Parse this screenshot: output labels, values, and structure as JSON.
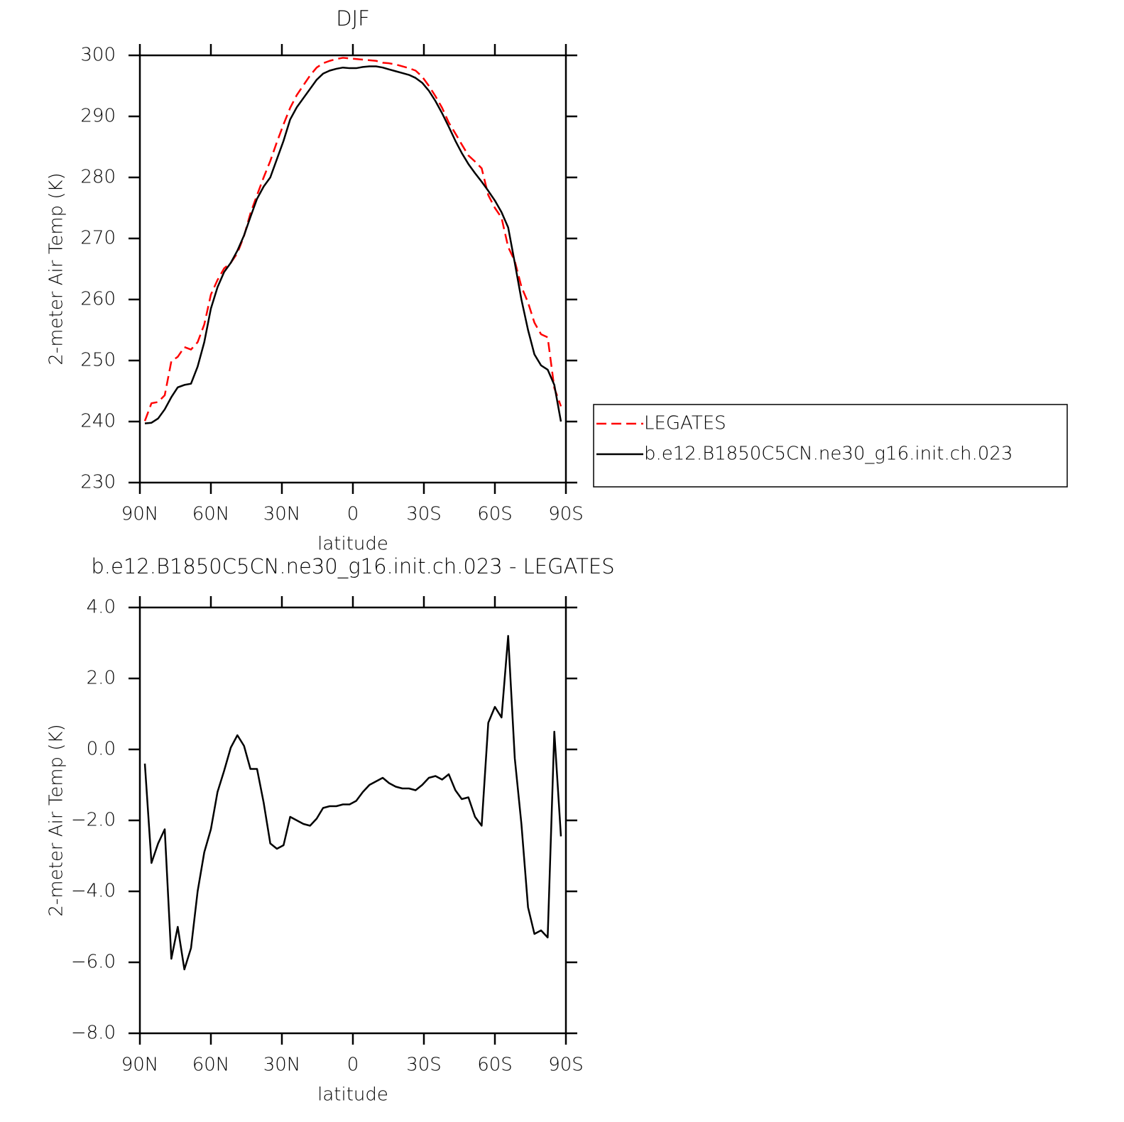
{
  "chart_data": [
    {
      "type": "line",
      "title": "DJF",
      "x_label": "latitude",
      "y_label": "2-meter Air Temp (K)",
      "x": [
        87.9,
        85.1,
        82.3,
        79.5,
        76.7,
        74.0,
        71.2,
        68.4,
        65.6,
        62.8,
        60.0,
        57.2,
        54.4,
        51.6,
        48.8,
        46.0,
        43.3,
        40.5,
        37.7,
        34.9,
        32.1,
        29.3,
        26.5,
        23.7,
        20.9,
        18.1,
        15.3,
        12.6,
        9.8,
        7.0,
        4.2,
        1.4,
        -1.4,
        -4.2,
        -7.0,
        -9.8,
        -12.6,
        -15.3,
        -18.1,
        -20.9,
        -23.7,
        -26.5,
        -29.3,
        -32.1,
        -34.9,
        -37.7,
        -40.5,
        -43.3,
        -46.0,
        -48.8,
        -51.6,
        -54.4,
        -57.2,
        -60.0,
        -62.8,
        -65.6,
        -68.4,
        -71.2,
        -74.0,
        -76.7,
        -79.5,
        -82.3,
        -85.1,
        -87.9
      ],
      "series": [
        {
          "name": "LEGATES",
          "color": "#ff0000",
          "line_style": "dashed",
          "values": [
            240.1,
            243.0,
            243.2,
            244.3,
            249.9,
            250.6,
            252.2,
            251.8,
            253.0,
            255.9,
            260.8,
            263.2,
            265.1,
            266.0,
            267.6,
            270.4,
            274.1,
            277.1,
            280.0,
            282.7,
            285.8,
            288.7,
            291.4,
            293.5,
            295.1,
            296.7,
            298.0,
            298.7,
            299.1,
            299.4,
            299.6,
            299.5,
            299.4,
            299.3,
            299.2,
            299.1,
            298.8,
            298.7,
            298.5,
            298.2,
            297.9,
            297.5,
            296.5,
            295.0,
            293.3,
            291.4,
            289.0,
            287.2,
            285.4,
            283.6,
            282.6,
            281.5,
            277.1,
            275.0,
            273.4,
            268.6,
            266.3,
            262.1,
            259.5,
            256.2,
            254.3,
            253.8,
            245.5,
            242.5
          ]
        },
        {
          "name": "b.e12.B1850C5CN.ne30_g16.init.ch.023",
          "color": "#000000",
          "line_style": "solid",
          "values": [
            239.7,
            239.8,
            240.5,
            242,
            244,
            245.6,
            246,
            246.2,
            249,
            253,
            258.5,
            262,
            264.5,
            266,
            268,
            270.5,
            273.5,
            276.5,
            278.5,
            280,
            283,
            286,
            289.5,
            291.5,
            293,
            294.5,
            296,
            297,
            297.5,
            297.8,
            298,
            297.9,
            297.9,
            298.1,
            298.2,
            298.2,
            298,
            297.7,
            297.4,
            297.1,
            296.8,
            296.3,
            295.5,
            294.2,
            292.5,
            290.5,
            288.3,
            286,
            284,
            282.2,
            280.7,
            279.3,
            277.8,
            276.2,
            274.3,
            271.8,
            266,
            260,
            255,
            251,
            249.2,
            248.5,
            246,
            240
          ]
        }
      ],
      "xlim": [
        90,
        -90
      ],
      "xticks": [
        {
          "value": 90,
          "label": "90N"
        },
        {
          "value": 60,
          "label": "60N"
        },
        {
          "value": 30,
          "label": "30N"
        },
        0,
        {
          "value": -30,
          "label": "30S"
        },
        {
          "value": -60,
          "label": "60S"
        },
        {
          "value": -90,
          "label": "90S"
        }
      ],
      "ylim": [
        230,
        300
      ],
      "yticks": [
        230,
        240,
        250,
        260,
        270,
        280,
        290,
        300
      ],
      "legend": "right"
    },
    {
      "type": "line",
      "title": "b.e12.B1850C5CN.ne30_g16.init.ch.023 - LEGATES",
      "x_label": "latitude",
      "y_label": "2-meter Air Temp (K)",
      "x": [
        87.9,
        85.1,
        82.3,
        79.5,
        76.7,
        74.0,
        71.2,
        68.4,
        65.6,
        62.8,
        60.0,
        57.2,
        54.4,
        51.6,
        48.8,
        46.0,
        43.3,
        40.5,
        37.7,
        34.9,
        32.1,
        29.3,
        26.5,
        23.7,
        20.9,
        18.1,
        15.3,
        12.6,
        9.8,
        7.0,
        4.2,
        1.4,
        -1.4,
        -4.2,
        -7.0,
        -9.8,
        -12.6,
        -15.3,
        -18.1,
        -20.9,
        -23.7,
        -26.5,
        -29.3,
        -32.1,
        -34.9,
        -37.7,
        -40.5,
        -43.3,
        -46.0,
        -48.8,
        -51.6,
        -54.4,
        -57.2,
        -60.0,
        -62.8,
        -65.6,
        -68.4,
        -71.2,
        -74.0,
        -76.7,
        -79.5,
        -82.3,
        -85.1,
        -87.9
      ],
      "series": [
        {
          "color": "#000000",
          "line_style": "solid",
          "values": [
            -0.4,
            -3.2,
            -2.65,
            -2.25,
            -5.9,
            -5.0,
            -6.2,
            -5.6,
            -4.0,
            -2.9,
            -2.25,
            -1.2,
            -0.6,
            0.05,
            0.4,
            0.1,
            -0.55,
            -0.55,
            -1.5,
            -2.65,
            -2.8,
            -2.7,
            -1.9,
            -2.0,
            -2.1,
            -2.15,
            -1.95,
            -1.65,
            -1.6,
            -1.6,
            -1.55,
            -1.55,
            -1.45,
            -1.2,
            -1.0,
            -0.9,
            -0.8,
            -0.95,
            -1.05,
            -1.1,
            -1.1,
            -1.15,
            -1.0,
            -0.8,
            -0.75,
            -0.85,
            -0.7,
            -1.15,
            -1.4,
            -1.35,
            -1.9,
            -2.15,
            0.75,
            1.2,
            0.9,
            3.2,
            -0.25,
            -2.1,
            -4.45,
            -5.2,
            -5.1,
            -5.3,
            0.5,
            -2.45
          ]
        }
      ],
      "xlim": [
        90,
        -90
      ],
      "xticks": [
        {
          "value": 90,
          "label": "90N"
        },
        {
          "value": 60,
          "label": "60N"
        },
        {
          "value": 30,
          "label": "30N"
        },
        0,
        {
          "value": -30,
          "label": "30S"
        },
        {
          "value": -60,
          "label": "60S"
        },
        {
          "value": -90,
          "label": "90S"
        }
      ],
      "ylim": [
        -8,
        4
      ],
      "yticks": [
        {
          "value": -8,
          "label": "−8.0"
        },
        {
          "value": -6,
          "label": "−6.0"
        },
        {
          "value": -4,
          "label": "−4.0"
        },
        {
          "value": -2,
          "label": "−2.0"
        },
        {
          "value": 0,
          "label": "0.0"
        },
        {
          "value": 2,
          "label": "2.0"
        },
        {
          "value": 4,
          "label": "4.0"
        }
      ]
    }
  ]
}
